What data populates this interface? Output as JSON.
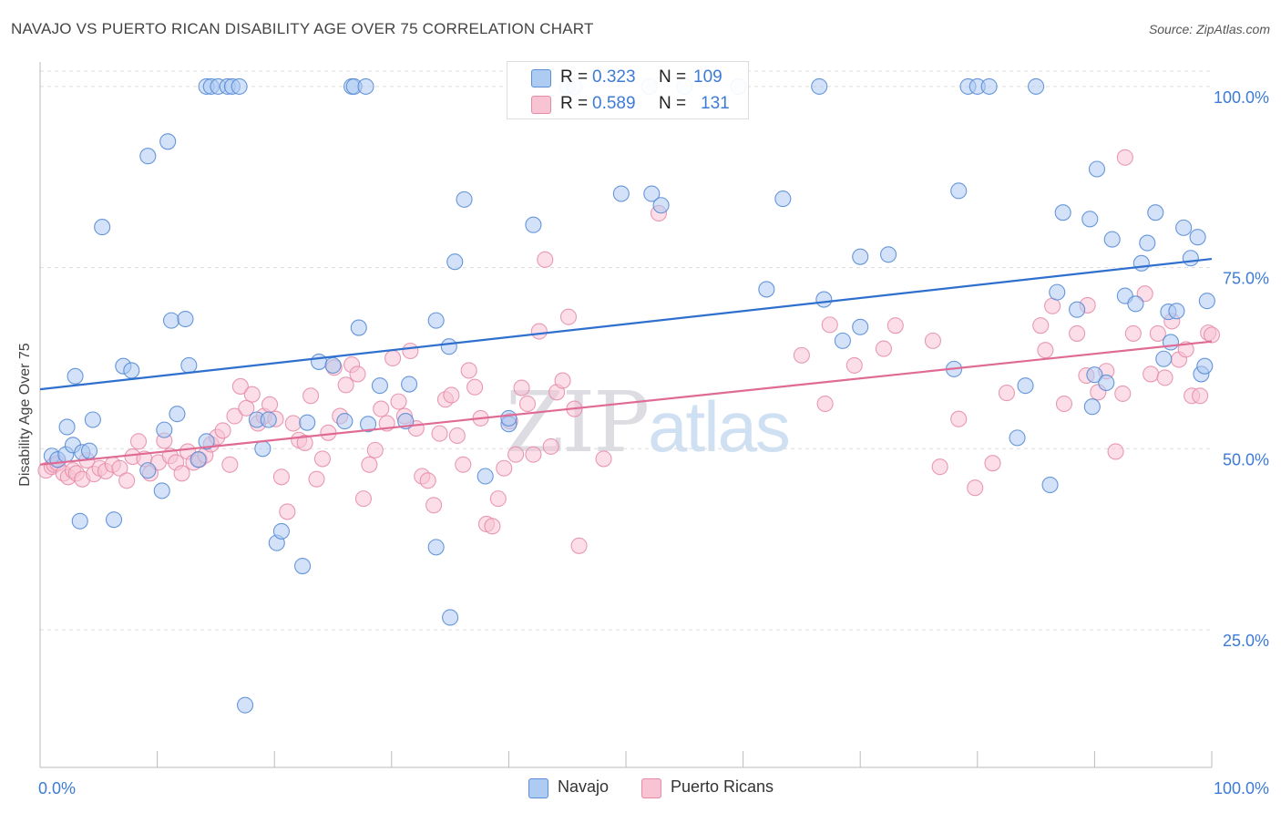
{
  "title": "NAVAJO VS PUERTO RICAN DISABILITY AGE OVER 75 CORRELATION CHART",
  "source": "Source: ZipAtlas.com",
  "watermark": {
    "zip": "ZIP",
    "atlas": "atlas"
  },
  "legend_stats": [
    {
      "r_label": "R =",
      "r_value": "0.323",
      "n_label": "N =",
      "n_value": "109",
      "color": "#aecbf2",
      "border": "#5a8fd8"
    },
    {
      "r_label": "R =",
      "r_value": "0.589",
      "n_label": "N =",
      "n_value": "131",
      "color": "#f8c3d3",
      "border": "#e58aa7"
    }
  ],
  "colors": {
    "navajo_fill": "#aecbf2",
    "navajo_stroke": "#4f86d4",
    "navajo_line": "#2f6fce",
    "pr_fill": "#f8c3d3",
    "pr_stroke": "#e58aa7",
    "pr_line": "#df6b95",
    "tick_label": "#3d7bd6",
    "grid": "#dddddd"
  },
  "chart_data": {
    "type": "scatter",
    "title": "NAVAJO VS PUERTO RICAN DISABILITY AGE OVER 75 CORRELATION CHART",
    "xlabel": "",
    "ylabel": "Disability Age Over 75",
    "xlim": [
      0,
      100
    ],
    "ylim": [
      6,
      102
    ],
    "x_tick_labels": [
      "0.0%",
      "100.0%"
    ],
    "y_ticks": [
      25,
      50,
      75,
      100
    ],
    "y_tick_labels": [
      "25.0%",
      "50.0%",
      "75.0%",
      "100.0%"
    ],
    "grid": "horizontal dashed",
    "legend_placement": "bottom-center",
    "series": [
      {
        "name": "Navajo",
        "r": 0.323,
        "n": 109,
        "trend": {
          "x": [
            0,
            100
          ],
          "y": [
            58.2,
            76.2
          ]
        },
        "points": [
          [
            1,
            49
          ],
          [
            1.5,
            48.5
          ],
          [
            2.2,
            49.2
          ],
          [
            2.3,
            53
          ],
          [
            2.8,
            50.5
          ],
          [
            3,
            60
          ],
          [
            3.4,
            40
          ],
          [
            3.6,
            49.5
          ],
          [
            4.2,
            49.7
          ],
          [
            4.5,
            54
          ],
          [
            5.3,
            80.6
          ],
          [
            6.3,
            40.2
          ],
          [
            7.1,
            61.4
          ],
          [
            7.8,
            60.8
          ],
          [
            9.2,
            90.4
          ],
          [
            9.2,
            47
          ],
          [
            10.6,
            52.6
          ],
          [
            10.4,
            44.2
          ],
          [
            10.9,
            92.4
          ],
          [
            11.2,
            67.7
          ],
          [
            11.7,
            54.8
          ],
          [
            12.4,
            67.9
          ],
          [
            12.7,
            61.5
          ],
          [
            13.5,
            48.5
          ],
          [
            14.2,
            51
          ],
          [
            14.2,
            100
          ],
          [
            14.6,
            100
          ],
          [
            15.2,
            100
          ],
          [
            16,
            100
          ],
          [
            16.4,
            100
          ],
          [
            17,
            100
          ],
          [
            17.5,
            14.6
          ],
          [
            18.5,
            54
          ],
          [
            19,
            50
          ],
          [
            19.5,
            54
          ],
          [
            20.2,
            37
          ],
          [
            20.6,
            38.6
          ],
          [
            22.4,
            33.8
          ],
          [
            22.8,
            53.6
          ],
          [
            23.8,
            62
          ],
          [
            25,
            61.5
          ],
          [
            26,
            53.8
          ],
          [
            26.6,
            100
          ],
          [
            26.8,
            100
          ],
          [
            27.8,
            100
          ],
          [
            27.2,
            66.7
          ],
          [
            28,
            53.4
          ],
          [
            29,
            58.7
          ],
          [
            31.5,
            58.9
          ],
          [
            31.2,
            53.8
          ],
          [
            33.8,
            67.7
          ],
          [
            33.8,
            36.4
          ],
          [
            34.9,
            64.1
          ],
          [
            35,
            26.7
          ],
          [
            35.4,
            75.8
          ],
          [
            36.2,
            84.4
          ],
          [
            38,
            46.2
          ],
          [
            40,
            53.4
          ],
          [
            40,
            54.2
          ],
          [
            42.1,
            80.9
          ],
          [
            45,
            100
          ],
          [
            45.6,
            100
          ],
          [
            49.6,
            85.2
          ],
          [
            52,
            100
          ],
          [
            52.2,
            85.2
          ],
          [
            53,
            83.6
          ],
          [
            55,
            100
          ],
          [
            59.6,
            100
          ],
          [
            62,
            72
          ],
          [
            63.4,
            84.5
          ],
          [
            66.5,
            100
          ],
          [
            66.9,
            70.6
          ],
          [
            68.5,
            64.9
          ],
          [
            70,
            76.5
          ],
          [
            70,
            66.8
          ],
          [
            72.4,
            76.8
          ],
          [
            78,
            61
          ],
          [
            78.4,
            85.6
          ],
          [
            79.2,
            100
          ],
          [
            80,
            100
          ],
          [
            81,
            100
          ],
          [
            83.4,
            51.5
          ],
          [
            84.1,
            58.7
          ],
          [
            85,
            100
          ],
          [
            86.2,
            45
          ],
          [
            86.8,
            71.6
          ],
          [
            87.3,
            82.6
          ],
          [
            88.5,
            69.2
          ],
          [
            89.6,
            81.7
          ],
          [
            89.8,
            55.8
          ],
          [
            90,
            60.2
          ],
          [
            90.2,
            88.6
          ],
          [
            91,
            59.1
          ],
          [
            91.5,
            78.9
          ],
          [
            92.6,
            71.1
          ],
          [
            93.5,
            70
          ],
          [
            94,
            75.6
          ],
          [
            94.5,
            78.4
          ],
          [
            95.2,
            82.6
          ],
          [
            95.9,
            62.4
          ],
          [
            96.3,
            68.9
          ],
          [
            96.5,
            64.7
          ],
          [
            97,
            69
          ],
          [
            97.6,
            80.5
          ],
          [
            98.2,
            76.3
          ],
          [
            98.8,
            79.2
          ],
          [
            99.1,
            60.3
          ],
          [
            99.4,
            61.4
          ],
          [
            99.6,
            70.4
          ]
        ]
      },
      {
        "name": "Puerto Ricans",
        "r": 0.589,
        "n": 131,
        "trend": {
          "x": [
            0,
            100
          ],
          "y": [
            47.8,
            64.8
          ]
        },
        "points": [
          [
            0.5,
            47
          ],
          [
            1,
            47.5
          ],
          [
            1.2,
            47.8
          ],
          [
            1.5,
            48
          ],
          [
            2,
            46.6
          ],
          [
            2.4,
            46.1
          ],
          [
            2.8,
            47
          ],
          [
            3.1,
            46.6
          ],
          [
            3.6,
            45.8
          ],
          [
            4,
            48.4
          ],
          [
            4.6,
            46.5
          ],
          [
            5.1,
            47.3
          ],
          [
            5.6,
            46.9
          ],
          [
            6.2,
            47.8
          ],
          [
            6.8,
            47.3
          ],
          [
            7.4,
            45.6
          ],
          [
            7.9,
            48.9
          ],
          [
            8.4,
            51
          ],
          [
            8.9,
            48.6
          ],
          [
            9.4,
            46.6
          ],
          [
            10.1,
            48.1
          ],
          [
            10.6,
            51.1
          ],
          [
            11.1,
            49
          ],
          [
            11.6,
            48.1
          ],
          [
            12.1,
            46.6
          ],
          [
            12.6,
            49.6
          ],
          [
            13.1,
            48.1
          ],
          [
            13.6,
            48.5
          ],
          [
            14.1,
            49.1
          ],
          [
            14.6,
            50.6
          ],
          [
            15.1,
            51.6
          ],
          [
            15.6,
            52.5
          ],
          [
            16.2,
            47.8
          ],
          [
            16.6,
            54.5
          ],
          [
            17.1,
            58.6
          ],
          [
            17.6,
            55.6
          ],
          [
            18.1,
            57.5
          ],
          [
            18.6,
            53.5
          ],
          [
            19.1,
            54.5
          ],
          [
            19.6,
            56.1
          ],
          [
            20.1,
            54.1
          ],
          [
            20.6,
            46.1
          ],
          [
            21.1,
            41.3
          ],
          [
            21.6,
            53.5
          ],
          [
            22.1,
            51.2
          ],
          [
            22.6,
            50.8
          ],
          [
            23.1,
            57.3
          ],
          [
            23.6,
            45.8
          ],
          [
            24.1,
            48.6
          ],
          [
            24.6,
            52.2
          ],
          [
            25.1,
            61.2
          ],
          [
            25.6,
            54.5
          ],
          [
            26.1,
            58.8
          ],
          [
            26.6,
            61.6
          ],
          [
            27.1,
            60.3
          ],
          [
            27.6,
            43.1
          ],
          [
            28.1,
            47.8
          ],
          [
            28.6,
            49.8
          ],
          [
            29.1,
            55.5
          ],
          [
            29.6,
            53.5
          ],
          [
            30.1,
            62.5
          ],
          [
            30.6,
            56.5
          ],
          [
            31.1,
            54.5
          ],
          [
            31.6,
            63.5
          ],
          [
            32.1,
            52.8
          ],
          [
            32.6,
            46.2
          ],
          [
            33.1,
            45.6
          ],
          [
            33.6,
            42.2
          ],
          [
            34.1,
            52.1
          ],
          [
            34.6,
            56.8
          ],
          [
            35.1,
            57.4
          ],
          [
            35.6,
            51.8
          ],
          [
            36.1,
            47.8
          ],
          [
            36.6,
            60.8
          ],
          [
            37.1,
            58.5
          ],
          [
            37.6,
            54.2
          ],
          [
            38.1,
            39.6
          ],
          [
            38.6,
            39.3
          ],
          [
            39.1,
            43.1
          ],
          [
            39.6,
            47.3
          ],
          [
            40.1,
            53.8
          ],
          [
            40.6,
            49.2
          ],
          [
            41.1,
            58.4
          ],
          [
            41.6,
            56.2
          ],
          [
            42.1,
            49.2
          ],
          [
            42.6,
            66.2
          ],
          [
            43.1,
            76.1
          ],
          [
            43.6,
            50.3
          ],
          [
            44.1,
            57.8
          ],
          [
            44.6,
            59.4
          ],
          [
            45.1,
            68.2
          ],
          [
            45.6,
            55.5
          ],
          [
            46,
            36.6
          ],
          [
            48.1,
            48.6
          ],
          [
            52.8,
            82.5
          ],
          [
            65,
            62.9
          ],
          [
            67.4,
            67.1
          ],
          [
            67,
            56.2
          ],
          [
            69.5,
            61.5
          ],
          [
            72,
            63.8
          ],
          [
            73,
            67
          ],
          [
            76.2,
            64.9
          ],
          [
            76.8,
            47.5
          ],
          [
            78.4,
            54.1
          ],
          [
            79.8,
            44.6
          ],
          [
            81.3,
            48
          ],
          [
            82.5,
            57.7
          ],
          [
            85.4,
            67
          ],
          [
            85.8,
            63.6
          ],
          [
            86.4,
            69.7
          ],
          [
            87.4,
            56.2
          ],
          [
            88.5,
            65.9
          ],
          [
            89.3,
            60.1
          ],
          [
            89.4,
            69.8
          ],
          [
            90.3,
            57.8
          ],
          [
            91,
            60.7
          ],
          [
            91.8,
            49.6
          ],
          [
            92.4,
            57.6
          ],
          [
            92.6,
            90.2
          ],
          [
            93.3,
            65.9
          ],
          [
            94.3,
            71.4
          ],
          [
            94.8,
            60.3
          ],
          [
            95.4,
            65.9
          ],
          [
            96,
            59.8
          ],
          [
            96.6,
            67.6
          ],
          [
            97.2,
            62.3
          ],
          [
            97.8,
            63.7
          ],
          [
            98.3,
            57.3
          ],
          [
            99,
            57.3
          ],
          [
            99.7,
            66
          ],
          [
            100,
            65.7
          ]
        ]
      }
    ]
  }
}
